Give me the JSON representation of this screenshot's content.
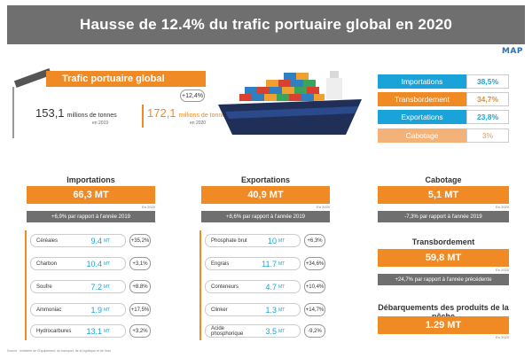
{
  "header": {
    "title": "Hausse de 12.4% du trafic portuaire global en 2020",
    "logo": "MAP"
  },
  "global": {
    "banner": "Trafic portuaire global",
    "value_2019": "153,1",
    "unit_2019": "millions de tonnes",
    "year_2019": "en 2019",
    "value_2020": "172,1",
    "unit_2020": "millions de tonnes",
    "year_2020": "en 2020",
    "growth": "+12,4%"
  },
  "shares": [
    {
      "label": "Importations",
      "value": "38,5%",
      "color": "#1aa3d9"
    },
    {
      "label": "Transbordement",
      "value": "34,7%",
      "color": "#f08a24"
    },
    {
      "label": "Exportations",
      "value": "23,8%",
      "color": "#1aa3d9"
    },
    {
      "label": "Cabotage",
      "value": "3%",
      "color": "#f2b27a"
    }
  ],
  "importations": {
    "title": "Importations",
    "total": "66,3 MT",
    "year": "En 2020",
    "change": "+6,9% par rapport à l'année 2019",
    "items": [
      {
        "name": "Céréales",
        "value": "9.4",
        "unit": "MT",
        "pct": "+35,2%"
      },
      {
        "name": "Charbon",
        "value": "10.4",
        "unit": "MT",
        "pct": "+3,1%"
      },
      {
        "name": "Soufre",
        "value": "7.2",
        "unit": "MT",
        "pct": "+8.8%"
      },
      {
        "name": "Ammoniac",
        "value": "1.9",
        "unit": "MT",
        "pct": "+17,5%"
      },
      {
        "name": "Hydrocarbures",
        "value": "13.1",
        "unit": "MT",
        "pct": "+3,2%"
      }
    ]
  },
  "exportations": {
    "title": "Exportations",
    "total": "40,9 MT",
    "year": "En 2020",
    "change": "+8,6% par rapport à l'année 2019",
    "items": [
      {
        "name": "Phosphate brut",
        "value": "10",
        "unit": "MT",
        "pct": "+6,3%"
      },
      {
        "name": "Engrais",
        "value": "11.7",
        "unit": "MT",
        "pct": "+34,6%"
      },
      {
        "name": "Conteneurs",
        "value": "4.7",
        "unit": "MT",
        "pct": "+10,4%"
      },
      {
        "name": "Clinker",
        "value": "1.3",
        "unit": "MT",
        "pct": "+14,7%"
      },
      {
        "name": "Acide phosphorique",
        "value": "3.5",
        "unit": "MT",
        "pct": "-9,2%"
      }
    ]
  },
  "cabotage": {
    "title": "Cabotage",
    "total": "5,1 MT",
    "year": "En 2020",
    "change": "-7,3% par rapport à l'année 2019"
  },
  "transbordement": {
    "title": "Transbordement",
    "total": "59,8 MT",
    "year": "En 2020",
    "change": "+24,7% par rapport à l'année précédente"
  },
  "peche": {
    "title": "Débarquements des produits de la pêche",
    "total": "1.29 MT",
    "year": "En 2020"
  },
  "source": "Source : ministère de l'Equipement, du transport, de la logistique et de l'eau"
}
